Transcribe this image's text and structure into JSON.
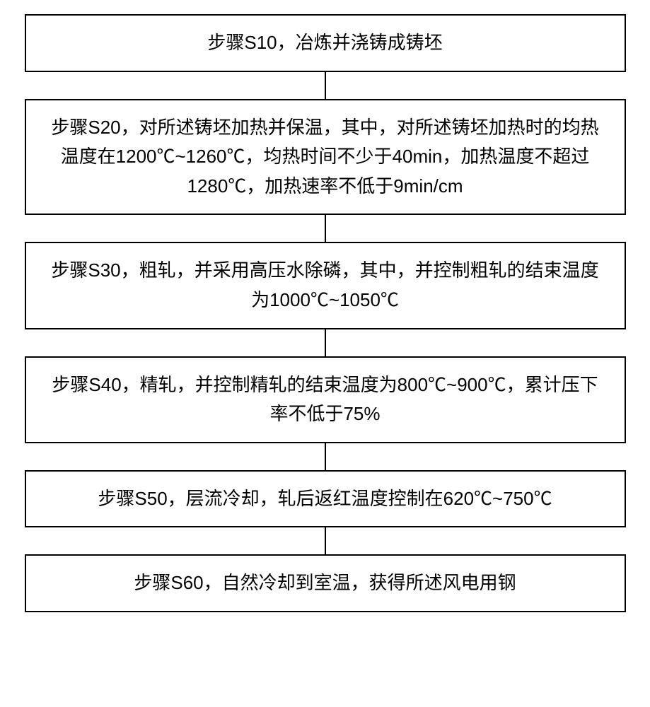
{
  "flowchart": {
    "type": "flowchart",
    "orientation": "vertical",
    "box_border_color": "#000000",
    "box_border_width": 2,
    "box_background": "#ffffff",
    "connector_color": "#000000",
    "connector_width": 2,
    "connector_height": 38,
    "font_size": 26,
    "text_color": "#000000",
    "steps": [
      {
        "id": "S10",
        "text": "步骤S10，冶炼并浇铸成铸坯"
      },
      {
        "id": "S20",
        "text": "步骤S20，对所述铸坯加热并保温，其中，对所述铸坯加热时的均热温度在1200℃~1260℃，均热时间不少于40min，加热温度不超过1280℃，加热速率不低于9min/cm"
      },
      {
        "id": "S30",
        "text": "步骤S30，粗轧，并采用高压水除磷，其中，并控制粗轧的结束温度为1000℃~1050℃"
      },
      {
        "id": "S40",
        "text": "步骤S40，精轧，并控制精轧的结束温度为800℃~900℃，累计压下率不低于75%"
      },
      {
        "id": "S50",
        "text": "步骤S50，层流冷却，轧后返红温度控制在620℃~750℃"
      },
      {
        "id": "S60",
        "text": "步骤S60，自然冷却到室温，获得所述风电用钢"
      }
    ]
  }
}
